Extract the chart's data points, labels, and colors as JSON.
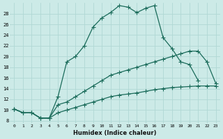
{
  "xlabel": "Humidex (Indice chaleur)",
  "background_color": "#cceae7",
  "grid_color": "#b0d8d4",
  "line_color": "#1a6b5a",
  "xlim": [
    -0.5,
    23.5
  ],
  "ylim": [
    7.5,
    30
  ],
  "xticks": [
    0,
    1,
    2,
    3,
    4,
    5,
    6,
    7,
    8,
    9,
    10,
    11,
    12,
    13,
    14,
    15,
    16,
    17,
    18,
    19,
    20,
    21,
    22,
    23
  ],
  "yticks": [
    8,
    10,
    12,
    14,
    16,
    18,
    20,
    22,
    24,
    26,
    28
  ],
  "line1_x": [
    0,
    1,
    2,
    3,
    4,
    5,
    6,
    7,
    8,
    9,
    10,
    11,
    12,
    13,
    14,
    15,
    16,
    17,
    18,
    19,
    20,
    21
  ],
  "line1_y": [
    10.2,
    9.5,
    9.5,
    8.5,
    8.5,
    12.5,
    19.0,
    20.0,
    22.0,
    25.5,
    27.2,
    28.2,
    29.5,
    29.2,
    28.2,
    29.0,
    29.5,
    23.5,
    21.5,
    19.0,
    18.5,
    15.5
  ],
  "line2_x": [
    0,
    1,
    2,
    3,
    4,
    5,
    6,
    7,
    8,
    9,
    10,
    11,
    12,
    13,
    14,
    15,
    16,
    17,
    18,
    19,
    20,
    21,
    22,
    23
  ],
  "line2_y": [
    10.2,
    9.5,
    9.5,
    8.5,
    8.5,
    11.0,
    11.5,
    12.5,
    13.5,
    14.5,
    15.5,
    16.5,
    17.0,
    17.5,
    18.0,
    18.5,
    19.0,
    19.5,
    20.0,
    20.5,
    21.0,
    21.0,
    19.0,
    15.0
  ],
  "line3_x": [
    0,
    1,
    2,
    3,
    4,
    5,
    6,
    7,
    8,
    9,
    10,
    11,
    12,
    13,
    14,
    15,
    16,
    17,
    18,
    19,
    20,
    21,
    22,
    23
  ],
  "line3_y": [
    10.2,
    9.5,
    9.5,
    8.5,
    8.5,
    9.5,
    10.0,
    10.5,
    11.0,
    11.5,
    12.0,
    12.5,
    12.8,
    13.0,
    13.2,
    13.5,
    13.8,
    14.0,
    14.2,
    14.3,
    14.4,
    14.5,
    14.5,
    14.5
  ]
}
